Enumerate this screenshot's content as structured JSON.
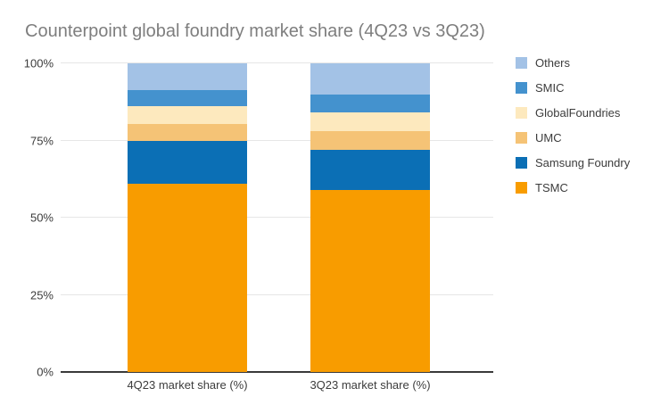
{
  "title": "Counterpoint global foundry market share (4Q23 vs 3Q23)",
  "colors": {
    "background": "#FFFFFF",
    "title_text": "#7E7E7E",
    "axis_text": "#3C3C3C",
    "gridline": "#E6E6E6",
    "axis_line": "#3A3A3A"
  },
  "chart_data": {
    "type": "bar",
    "stacked": true,
    "title": "Counterpoint global foundry market share (4Q23 vs 3Q23)",
    "categories": [
      "4Q23 market share (%)",
      "3Q23 market share (%)"
    ],
    "series": [
      {
        "name": "TSMC",
        "color": "#F89C00",
        "values": [
          61,
          59
        ]
      },
      {
        "name": "Samsung Foundry",
        "color": "#0B6FB5",
        "values": [
          14,
          13
        ]
      },
      {
        "name": "UMC",
        "color": "#F5C376",
        "values": [
          5.4,
          6
        ]
      },
      {
        "name": "GlobalFoundries",
        "color": "#FDE9BE",
        "values": [
          5.8,
          6
        ]
      },
      {
        "name": "SMIC",
        "color": "#4492CE",
        "values": [
          5.2,
          6
        ]
      },
      {
        "name": "Others",
        "color": "#A3C2E6",
        "values": [
          8.6,
          10
        ]
      }
    ],
    "y_ticks": [
      {
        "label": "0%",
        "value": 0
      },
      {
        "label": "25%",
        "value": 25
      },
      {
        "label": "50%",
        "value": 50
      },
      {
        "label": "75%",
        "value": 75
      },
      {
        "label": "100%",
        "value": 100
      }
    ],
    "ylim": [
      0,
      100
    ],
    "grid": true,
    "legend_position": "right",
    "legend_order": [
      "Others",
      "SMIC",
      "GlobalFoundries",
      "UMC",
      "Samsung Foundry",
      "TSMC"
    ]
  }
}
